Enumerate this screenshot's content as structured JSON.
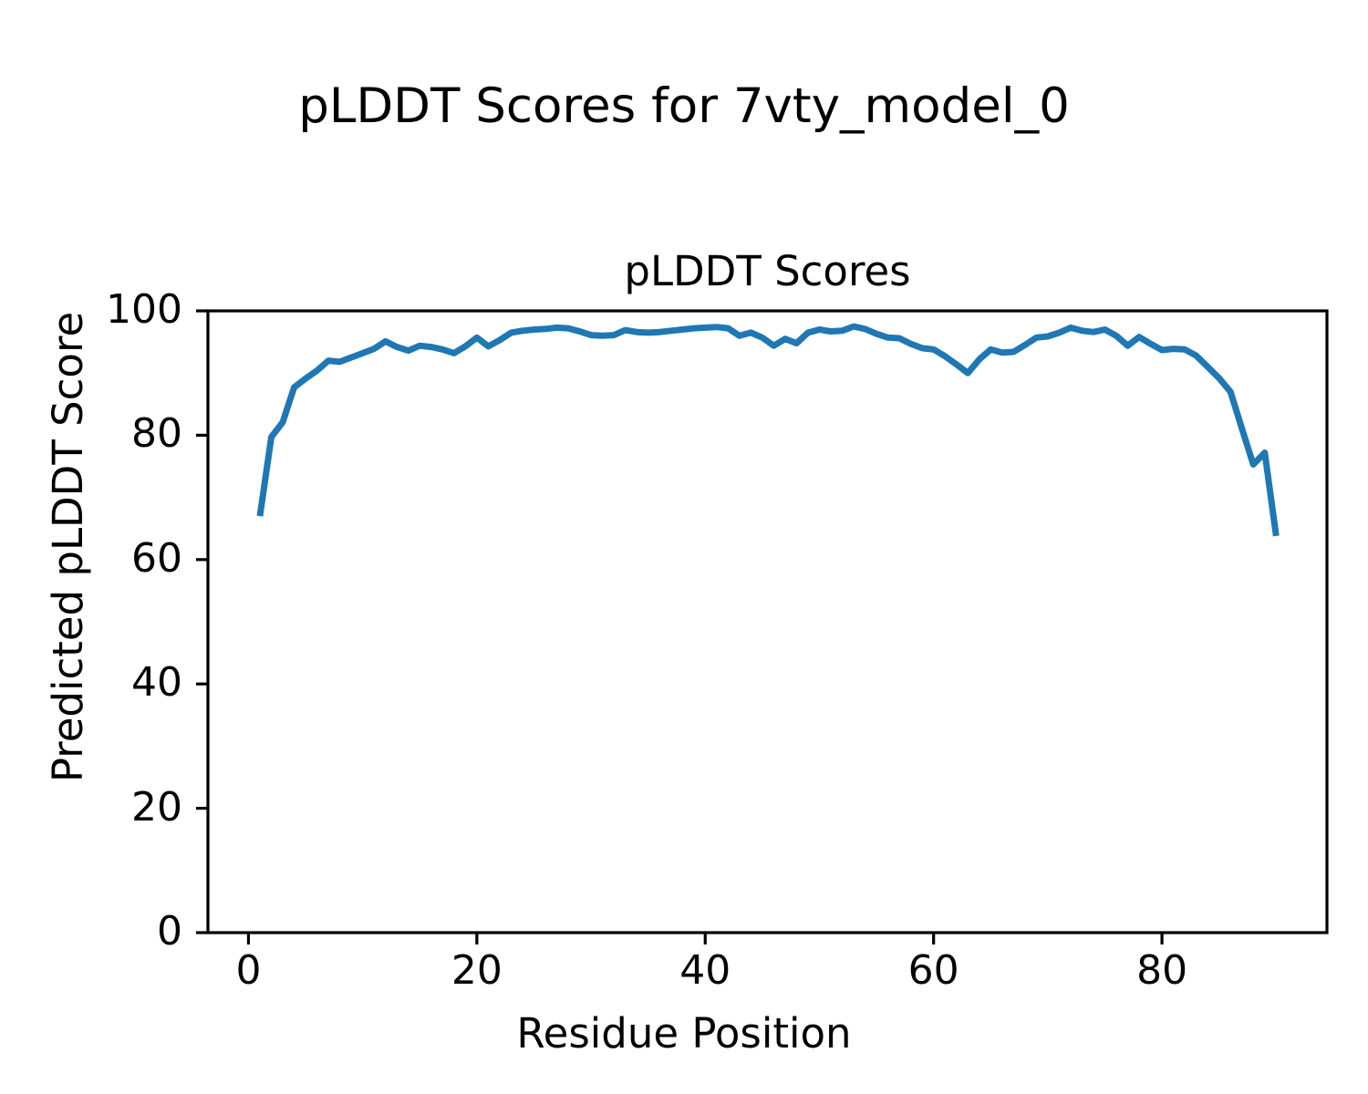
{
  "figure": {
    "suptitle": "pLDDT Scores for 7vty_model_0"
  },
  "chart_data": {
    "type": "line",
    "title": "pLDDT Scores",
    "suptitle": "pLDDT Scores for 7vty_model_0",
    "xlabel": "Residue Position",
    "ylabel": "Predicted pLDDT Score",
    "xlim": [
      -3.55,
      94.45
    ],
    "ylim": [
      0,
      100
    ],
    "xticks": [
      0,
      20,
      40,
      60,
      80
    ],
    "yticks": [
      0,
      20,
      40,
      60,
      80,
      100
    ],
    "grid": false,
    "legend": null,
    "colors": {
      "line": "#1f77b4",
      "text": "#000000",
      "spine": "#000000"
    },
    "series": [
      {
        "name": "pLDDT",
        "color": "#1f77b4",
        "x": [
          1,
          2,
          3,
          4,
          5,
          6,
          7,
          8,
          9,
          10,
          11,
          12,
          13,
          14,
          15,
          16,
          17,
          18,
          19,
          20,
          21,
          22,
          23,
          24,
          25,
          26,
          27,
          28,
          29,
          30,
          31,
          32,
          33,
          34,
          35,
          36,
          37,
          38,
          39,
          40,
          41,
          42,
          43,
          44,
          45,
          46,
          47,
          48,
          49,
          50,
          51,
          52,
          53,
          54,
          55,
          56,
          57,
          58,
          59,
          60,
          61,
          62,
          63,
          64,
          65,
          66,
          67,
          68,
          69,
          70,
          71,
          72,
          73,
          74,
          75,
          76,
          77,
          78,
          79,
          80,
          81,
          82,
          83,
          84,
          85,
          86,
          87,
          88,
          89,
          90
        ],
        "y": [
          67.0,
          79.7,
          82.1,
          87.7,
          89.1,
          90.4,
          92.0,
          91.8,
          92.5,
          93.2,
          93.9,
          95.1,
          94.2,
          93.6,
          94.4,
          94.2,
          93.8,
          93.2,
          94.3,
          95.7,
          94.3,
          95.3,
          96.5,
          96.8,
          97.0,
          97.1,
          97.3,
          97.2,
          96.7,
          96.1,
          96.0,
          96.1,
          96.9,
          96.6,
          96.5,
          96.6,
          96.8,
          97.0,
          97.2,
          97.3,
          97.4,
          97.2,
          96.0,
          96.5,
          95.7,
          94.4,
          95.5,
          94.8,
          96.5,
          97.0,
          96.7,
          96.8,
          97.5,
          97.1,
          96.3,
          95.7,
          95.6,
          94.7,
          94.0,
          93.8,
          92.7,
          91.4,
          90.0,
          92.2,
          93.8,
          93.3,
          93.4,
          94.5,
          95.7,
          95.9,
          96.5,
          97.3,
          96.8,
          96.6,
          97.0,
          96.0,
          94.4,
          95.8,
          94.7,
          93.7,
          93.9,
          93.8,
          92.8,
          91.0,
          89.2,
          87.0,
          81.1,
          75.3,
          77.2,
          63.8
        ]
      }
    ]
  }
}
